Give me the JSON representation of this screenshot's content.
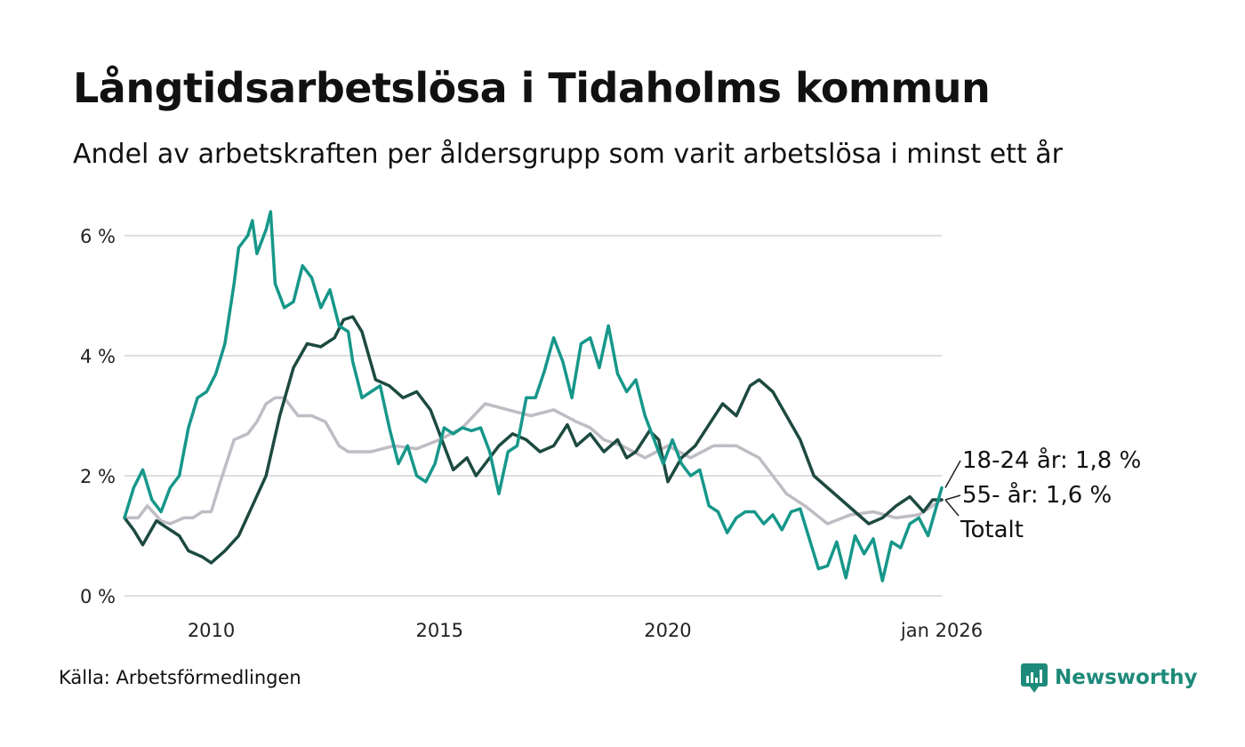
{
  "title": "Långtidsarbetslösa i Tidaholms kommun",
  "subtitle": "Andel av arbetskraften per åldersgrupp som varit arbetslösa i minst ett år",
  "source": "Källa: Arbetsförmedlingen",
  "brand": "Newsworthy",
  "colors": {
    "youth": "#16978a",
    "senior": "#1d4a40",
    "total": "#c0bcc4",
    "grid": "#dedede",
    "brand": "#1e8a79"
  },
  "chart_data": {
    "type": "line",
    "xlabel": "",
    "ylabel": "",
    "xlim": [
      2008.1,
      2026.0
    ],
    "ylim": [
      0,
      6.4
    ],
    "y_ticks": [
      {
        "value": 0,
        "label": "0 %"
      },
      {
        "value": 2,
        "label": "2 %"
      },
      {
        "value": 4,
        "label": "4 %"
      },
      {
        "value": 6,
        "label": "6 %"
      }
    ],
    "x_ticks": [
      {
        "value": 2010,
        "label": "2010"
      },
      {
        "value": 2015,
        "label": "2015"
      },
      {
        "value": 2020,
        "label": "2020"
      },
      {
        "value": 2026,
        "label": "jan 2026"
      }
    ],
    "series": [
      {
        "name": "Totalt",
        "key": "total",
        "end_label": "Totalt",
        "points": [
          [
            2008.1,
            1.3
          ],
          [
            2008.4,
            1.3
          ],
          [
            2008.6,
            1.5
          ],
          [
            2008.9,
            1.25
          ],
          [
            2009.1,
            1.2
          ],
          [
            2009.4,
            1.3
          ],
          [
            2009.6,
            1.3
          ],
          [
            2009.8,
            1.4
          ],
          [
            2010.0,
            1.4
          ],
          [
            2010.2,
            1.9
          ],
          [
            2010.5,
            2.6
          ],
          [
            2010.8,
            2.7
          ],
          [
            2011.0,
            2.9
          ],
          [
            2011.2,
            3.2
          ],
          [
            2011.4,
            3.3
          ],
          [
            2011.6,
            3.3
          ],
          [
            2011.9,
            3.0
          ],
          [
            2012.2,
            3.0
          ],
          [
            2012.5,
            2.9
          ],
          [
            2012.8,
            2.5
          ],
          [
            2013.0,
            2.4
          ],
          [
            2013.5,
            2.4
          ],
          [
            2014.0,
            2.5
          ],
          [
            2014.5,
            2.45
          ],
          [
            2015.0,
            2.6
          ],
          [
            2015.5,
            2.8
          ],
          [
            2016.0,
            3.2
          ],
          [
            2016.5,
            3.1
          ],
          [
            2017.0,
            3.0
          ],
          [
            2017.5,
            3.1
          ],
          [
            2018.0,
            2.9
          ],
          [
            2018.3,
            2.8
          ],
          [
            2018.6,
            2.6
          ],
          [
            2019.0,
            2.5
          ],
          [
            2019.5,
            2.3
          ],
          [
            2020.0,
            2.5
          ],
          [
            2020.5,
            2.3
          ],
          [
            2021.0,
            2.5
          ],
          [
            2021.5,
            2.5
          ],
          [
            2022.0,
            2.3
          ],
          [
            2022.3,
            2.0
          ],
          [
            2022.6,
            1.7
          ],
          [
            2023.0,
            1.5
          ],
          [
            2023.5,
            1.2
          ],
          [
            2024.0,
            1.35
          ],
          [
            2024.5,
            1.4
          ],
          [
            2025.0,
            1.3
          ],
          [
            2025.5,
            1.35
          ],
          [
            2026.0,
            1.6
          ]
        ]
      },
      {
        "name": "55- år",
        "key": "senior",
        "end_label": "55- år: 1,6 %",
        "points": [
          [
            2008.1,
            1.3
          ],
          [
            2008.3,
            1.1
          ],
          [
            2008.5,
            0.85
          ],
          [
            2008.8,
            1.25
          ],
          [
            2009.0,
            1.15
          ],
          [
            2009.3,
            1.0
          ],
          [
            2009.5,
            0.75
          ],
          [
            2009.8,
            0.65
          ],
          [
            2010.0,
            0.55
          ],
          [
            2010.3,
            0.75
          ],
          [
            2010.6,
            1.0
          ],
          [
            2010.9,
            1.5
          ],
          [
            2011.2,
            2.0
          ],
          [
            2011.5,
            3.0
          ],
          [
            2011.8,
            3.8
          ],
          [
            2012.1,
            4.2
          ],
          [
            2012.4,
            4.15
          ],
          [
            2012.7,
            4.3
          ],
          [
            2012.9,
            4.6
          ],
          [
            2013.1,
            4.65
          ],
          [
            2013.3,
            4.4
          ],
          [
            2013.6,
            3.6
          ],
          [
            2013.9,
            3.5
          ],
          [
            2014.2,
            3.3
          ],
          [
            2014.5,
            3.4
          ],
          [
            2014.8,
            3.1
          ],
          [
            2015.0,
            2.7
          ],
          [
            2015.3,
            2.1
          ],
          [
            2015.6,
            2.3
          ],
          [
            2015.8,
            2.0
          ],
          [
            2016.0,
            2.2
          ],
          [
            2016.3,
            2.5
          ],
          [
            2016.6,
            2.7
          ],
          [
            2016.9,
            2.6
          ],
          [
            2017.2,
            2.4
          ],
          [
            2017.5,
            2.5
          ],
          [
            2017.8,
            2.85
          ],
          [
            2018.0,
            2.5
          ],
          [
            2018.3,
            2.7
          ],
          [
            2018.6,
            2.4
          ],
          [
            2018.9,
            2.6
          ],
          [
            2019.1,
            2.3
          ],
          [
            2019.3,
            2.4
          ],
          [
            2019.6,
            2.75
          ],
          [
            2019.8,
            2.6
          ],
          [
            2020.0,
            1.9
          ],
          [
            2020.3,
            2.3
          ],
          [
            2020.6,
            2.5
          ],
          [
            2020.9,
            2.85
          ],
          [
            2021.2,
            3.2
          ],
          [
            2021.5,
            3.0
          ],
          [
            2021.8,
            3.5
          ],
          [
            2022.0,
            3.6
          ],
          [
            2022.3,
            3.4
          ],
          [
            2022.6,
            3.0
          ],
          [
            2022.9,
            2.6
          ],
          [
            2023.2,
            2.0
          ],
          [
            2023.5,
            1.8
          ],
          [
            2023.8,
            1.6
          ],
          [
            2024.1,
            1.4
          ],
          [
            2024.4,
            1.2
          ],
          [
            2024.7,
            1.3
          ],
          [
            2025.0,
            1.5
          ],
          [
            2025.3,
            1.65
          ],
          [
            2025.6,
            1.4
          ],
          [
            2025.8,
            1.6
          ],
          [
            2026.0,
            1.6
          ]
        ]
      },
      {
        "name": "18-24 år",
        "key": "youth",
        "end_label": "18-24 år: 1,8 %",
        "points": [
          [
            2008.1,
            1.3
          ],
          [
            2008.3,
            1.8
          ],
          [
            2008.5,
            2.1
          ],
          [
            2008.7,
            1.6
          ],
          [
            2008.9,
            1.4
          ],
          [
            2009.1,
            1.8
          ],
          [
            2009.3,
            2.0
          ],
          [
            2009.5,
            2.8
          ],
          [
            2009.7,
            3.3
          ],
          [
            2009.9,
            3.4
          ],
          [
            2010.1,
            3.7
          ],
          [
            2010.3,
            4.2
          ],
          [
            2010.5,
            5.2
          ],
          [
            2010.6,
            5.8
          ],
          [
            2010.8,
            6.0
          ],
          [
            2010.9,
            6.25
          ],
          [
            2011.0,
            5.7
          ],
          [
            2011.2,
            6.1
          ],
          [
            2011.3,
            6.4
          ],
          [
            2011.4,
            5.2
          ],
          [
            2011.6,
            4.8
          ],
          [
            2011.8,
            4.9
          ],
          [
            2012.0,
            5.5
          ],
          [
            2012.2,
            5.3
          ],
          [
            2012.4,
            4.8
          ],
          [
            2012.6,
            5.1
          ],
          [
            2012.8,
            4.5
          ],
          [
            2013.0,
            4.4
          ],
          [
            2013.1,
            3.9
          ],
          [
            2013.3,
            3.3
          ],
          [
            2013.5,
            3.4
          ],
          [
            2013.7,
            3.5
          ],
          [
            2013.9,
            2.8
          ],
          [
            2014.1,
            2.2
          ],
          [
            2014.3,
            2.5
          ],
          [
            2014.5,
            2.0
          ],
          [
            2014.7,
            1.9
          ],
          [
            2014.9,
            2.2
          ],
          [
            2015.1,
            2.8
          ],
          [
            2015.3,
            2.7
          ],
          [
            2015.5,
            2.8
          ],
          [
            2015.7,
            2.75
          ],
          [
            2015.9,
            2.8
          ],
          [
            2016.1,
            2.4
          ],
          [
            2016.3,
            1.7
          ],
          [
            2016.5,
            2.4
          ],
          [
            2016.7,
            2.5
          ],
          [
            2016.9,
            3.3
          ],
          [
            2017.1,
            3.3
          ],
          [
            2017.3,
            3.75
          ],
          [
            2017.5,
            4.3
          ],
          [
            2017.7,
            3.9
          ],
          [
            2017.9,
            3.3
          ],
          [
            2018.1,
            4.2
          ],
          [
            2018.3,
            4.3
          ],
          [
            2018.5,
            3.8
          ],
          [
            2018.7,
            4.5
          ],
          [
            2018.9,
            3.7
          ],
          [
            2019.1,
            3.4
          ],
          [
            2019.3,
            3.6
          ],
          [
            2019.5,
            3.0
          ],
          [
            2019.7,
            2.6
          ],
          [
            2019.9,
            2.2
          ],
          [
            2020.1,
            2.6
          ],
          [
            2020.3,
            2.2
          ],
          [
            2020.5,
            2.0
          ],
          [
            2020.7,
            2.1
          ],
          [
            2020.9,
            1.5
          ],
          [
            2021.1,
            1.4
          ],
          [
            2021.3,
            1.05
          ],
          [
            2021.5,
            1.3
          ],
          [
            2021.7,
            1.4
          ],
          [
            2021.9,
            1.4
          ],
          [
            2022.1,
            1.2
          ],
          [
            2022.3,
            1.35
          ],
          [
            2022.5,
            1.1
          ],
          [
            2022.7,
            1.4
          ],
          [
            2022.9,
            1.45
          ],
          [
            2023.1,
            0.95
          ],
          [
            2023.3,
            0.45
          ],
          [
            2023.5,
            0.5
          ],
          [
            2023.7,
            0.9
          ],
          [
            2023.9,
            0.3
          ],
          [
            2024.1,
            1.0
          ],
          [
            2024.3,
            0.7
          ],
          [
            2024.5,
            0.95
          ],
          [
            2024.7,
            0.25
          ],
          [
            2024.9,
            0.9
          ],
          [
            2025.1,
            0.8
          ],
          [
            2025.3,
            1.2
          ],
          [
            2025.5,
            1.3
          ],
          [
            2025.7,
            1.0
          ],
          [
            2025.85,
            1.4
          ],
          [
            2026.0,
            1.8
          ]
        ]
      }
    ]
  }
}
